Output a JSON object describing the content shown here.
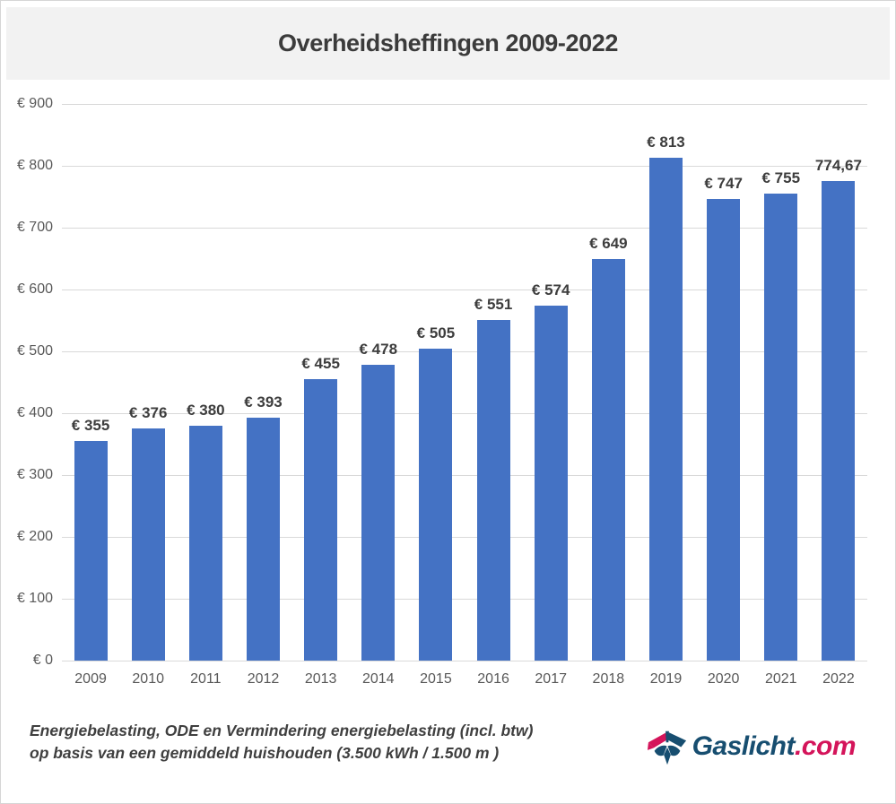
{
  "title": "Overheidsheffingen 2009-2022",
  "footer": {
    "line1": "Energiebelasting, ODE en Vermindering energiebelasting (incl. btw)",
    "line2": "op basis van een gemiddeld huishouden (3.500 kWh / 1.500 m )"
  },
  "logo": {
    "name": "Gaslicht",
    "suffix": ".com",
    "name_color": "#174e70",
    "suffix_color": "#d4145a"
  },
  "colors": {
    "bar": "#4472c4",
    "gridline": "#d9d9d9",
    "axis_text": "#595959",
    "value_text": "#3d3d3d",
    "title_bg": "#f2f2f2",
    "title_text": "#3b3b3b"
  },
  "chart_data": {
    "type": "bar",
    "title": "Overheidsheffingen 2009-2022",
    "categories": [
      "2009",
      "2010",
      "2011",
      "2012",
      "2013",
      "2014",
      "2015",
      "2016",
      "2017",
      "2018",
      "2019",
      "2020",
      "2021",
      "2022"
    ],
    "values": [
      355,
      376,
      380,
      393,
      455,
      478,
      505,
      551,
      574,
      649,
      813,
      747,
      755,
      774.67
    ],
    "value_labels": [
      "€ 355",
      "€ 376",
      "€ 380",
      "€ 393",
      "€ 455",
      "€ 478",
      "€ 505",
      "€ 551",
      "€ 574",
      "€ 649",
      "€ 813",
      "€ 747",
      "€ 755",
      "774,67"
    ],
    "xlabel": "",
    "ylabel": "",
    "ylim": [
      0,
      900
    ],
    "ytick_step": 100,
    "ytick_labels": [
      "€ 0",
      "€ 100",
      "€ 200",
      "€ 300",
      "€ 400",
      "€ 500",
      "€ 600",
      "€ 700",
      "€ 800",
      "€ 900"
    ],
    "grid": true,
    "legend": false,
    "bar_color": "#4472c4"
  }
}
